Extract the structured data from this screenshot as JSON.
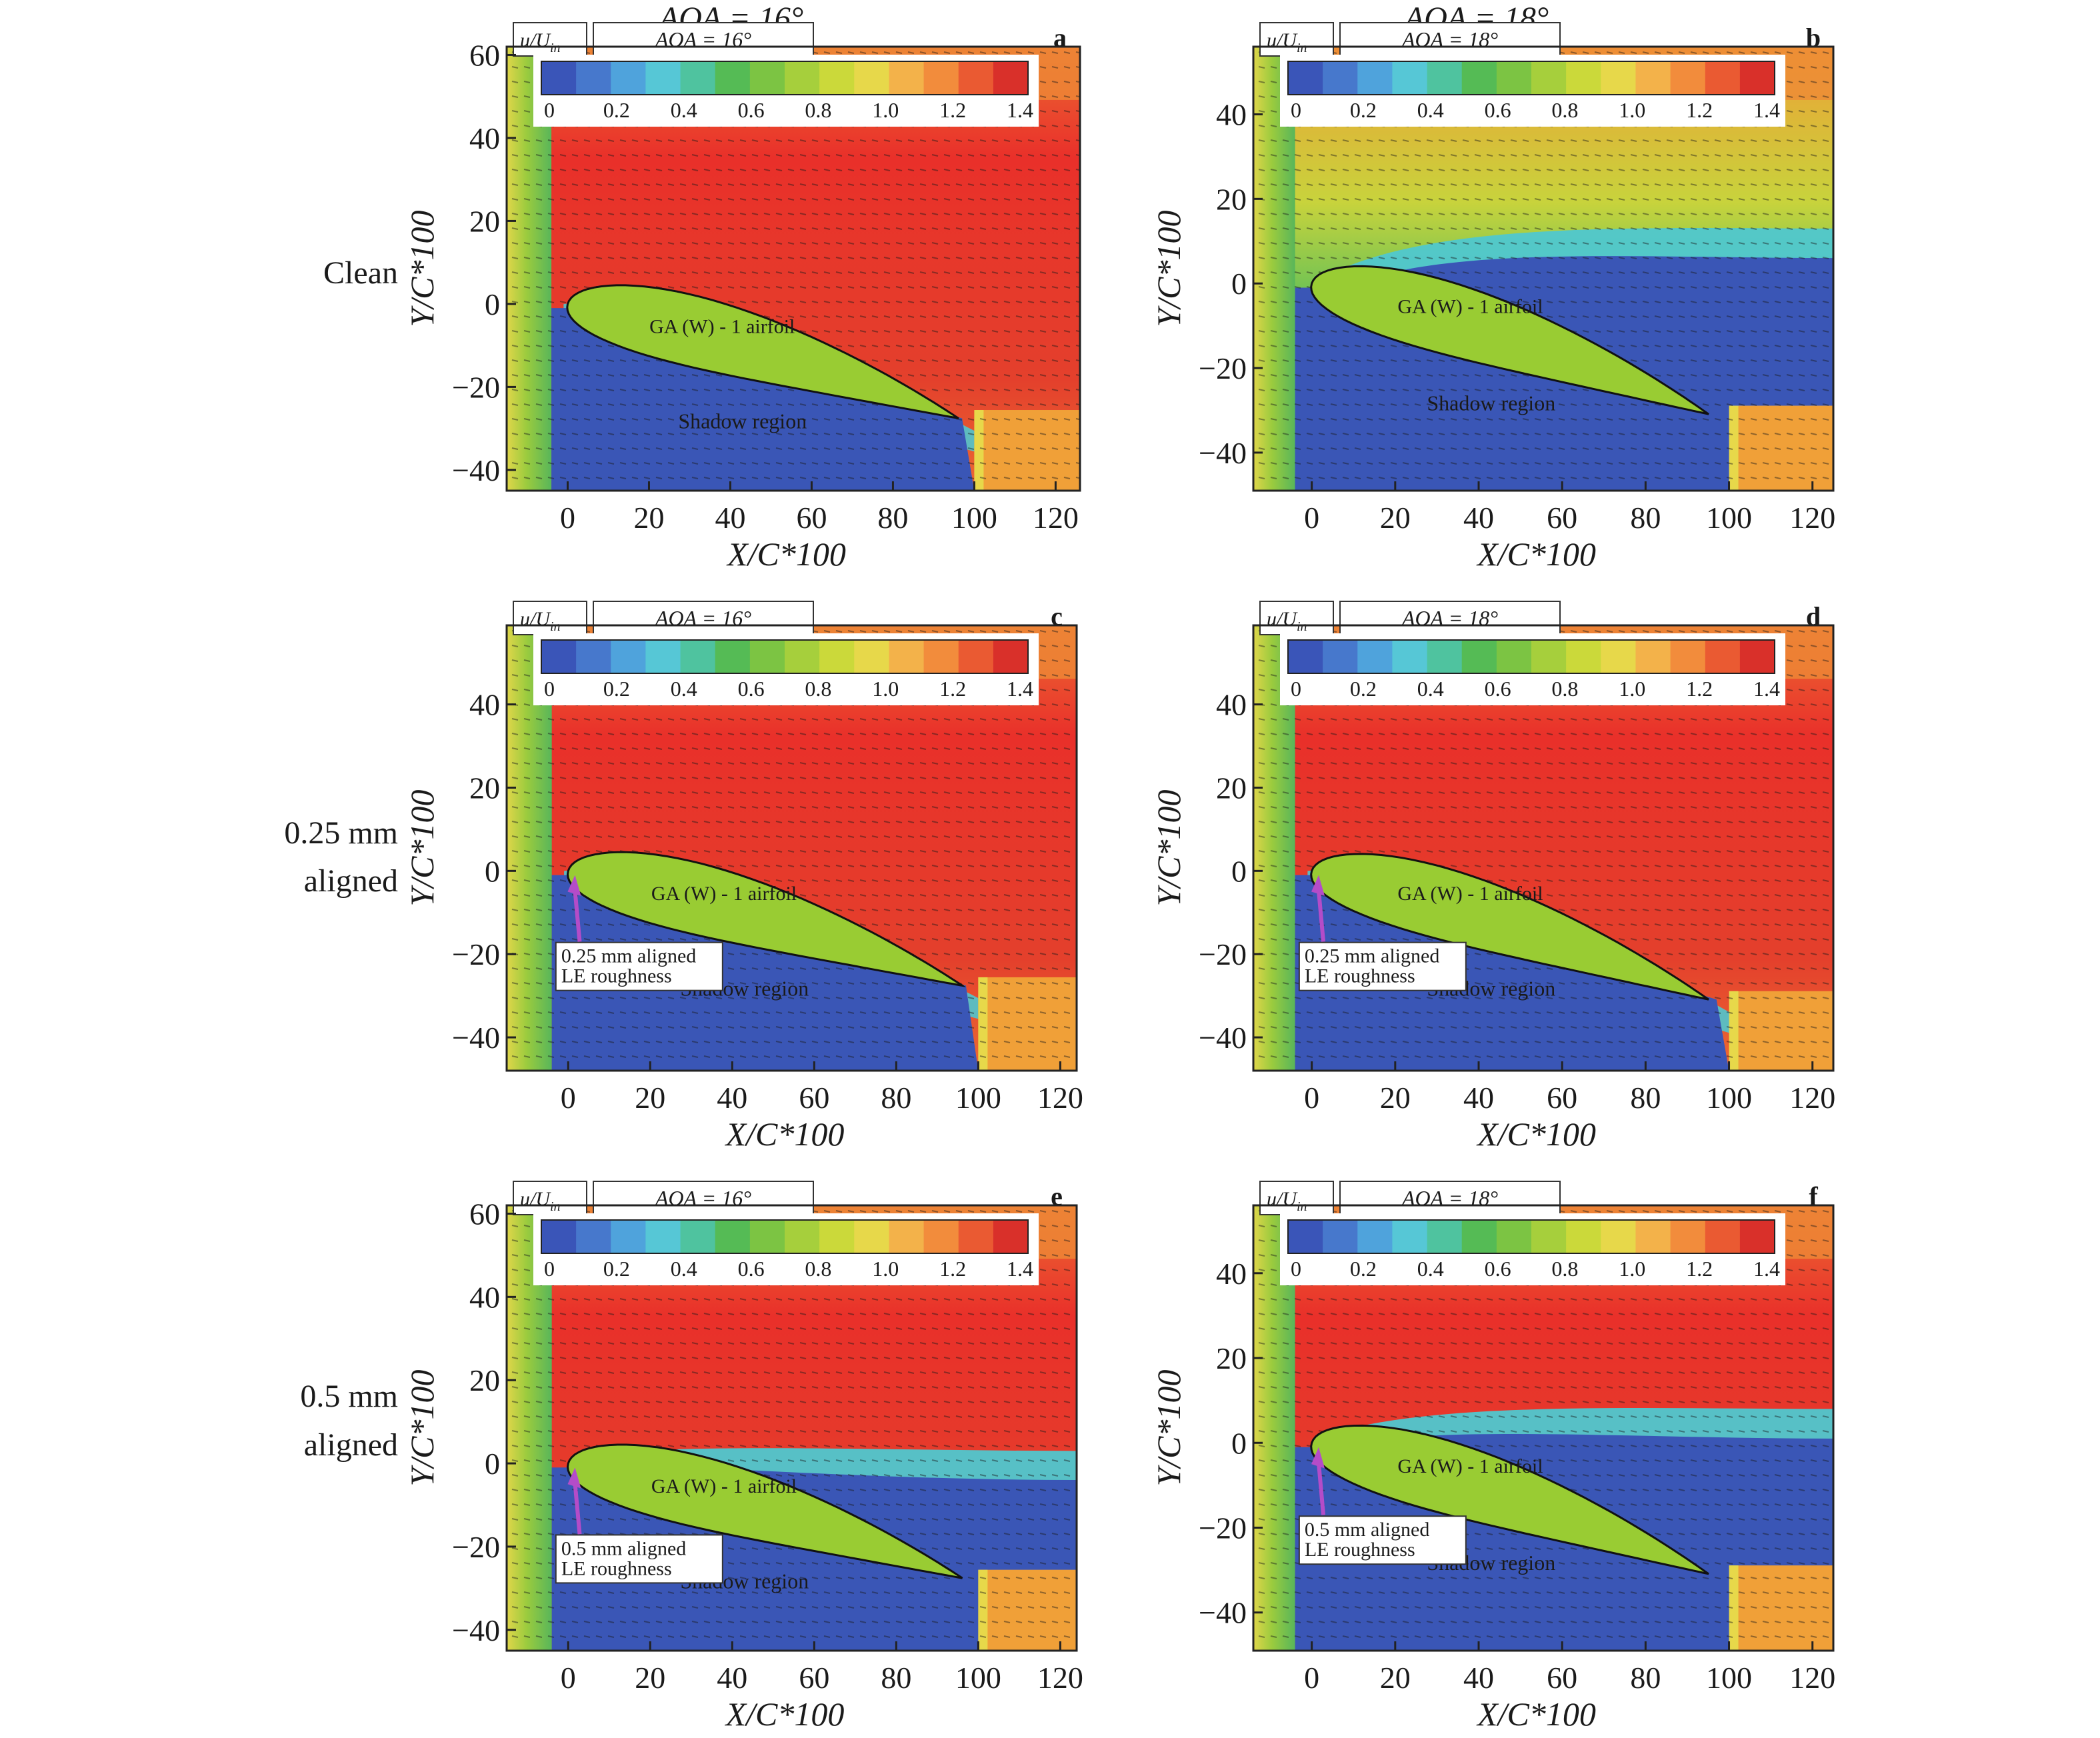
{
  "figure": {
    "column_titles": [
      "AOA = 16°",
      "AOA = 18°"
    ],
    "row_labels": [
      [
        "Clean"
      ],
      [
        "0.25 mm",
        "aligned"
      ],
      [
        "0.5 mm",
        "aligned"
      ]
    ],
    "colorbar": {
      "label": "u/U",
      "label_sub": "in",
      "ticks": [
        "0",
        "0.2",
        "0.4",
        "0.6",
        "0.8",
        "1.0",
        "1.2",
        "1.4"
      ],
      "colors": [
        "#3a55b8",
        "#4778cc",
        "#4fa3dc",
        "#56c7d6",
        "#4fc39f",
        "#55bb55",
        "#7cc443",
        "#a6cf3c",
        "#cbd93a",
        "#e7d84a",
        "#f3b24a",
        "#f28c3c",
        "#ea5a32",
        "#d9302a"
      ]
    },
    "field_colors": {
      "shadow": "#3a56b6",
      "freestream_high": "#e9302a",
      "freestream_mid": "#ec6b33",
      "inflow_green": "#58b65a",
      "airfoil_fill": "#99cc33",
      "wake_orange": "#f0a038",
      "shear_cyan": "#4fc7cf"
    }
  },
  "chart_data": [
    {
      "type": "heatmap",
      "panel": "a",
      "aoa_label": "AOA = 16°",
      "condition": "Clean",
      "xlabel": "X/C*100",
      "ylabel": "Y/C*100",
      "xticks": [
        0,
        20,
        40,
        60,
        80,
        100,
        120
      ],
      "yticks": [
        -40,
        -20,
        0,
        20,
        40,
        60
      ],
      "xlim": [
        -15,
        126
      ],
      "ylim": [
        -45,
        62
      ],
      "airfoil_label": "GA (W) - 1 airfoil",
      "shadow_label": "Shadow region",
      "roughness_label": null,
      "separated": false
    },
    {
      "type": "heatmap",
      "panel": "b",
      "aoa_label": "AOA = 18°",
      "condition": "Clean",
      "xlabel": "X/C*100",
      "ylabel": "Y/C*100",
      "xticks": [
        0,
        20,
        40,
        60,
        80,
        100,
        120
      ],
      "yticks": [
        -40,
        -20,
        0,
        20,
        40
      ],
      "xlim": [
        -14,
        125
      ],
      "ylim": [
        -49,
        56
      ],
      "airfoil_label": "GA (W) - 1 airfoil",
      "shadow_label": "Shadow region",
      "roughness_label": null,
      "separated": true
    },
    {
      "type": "heatmap",
      "panel": "c",
      "aoa_label": "AOA = 16°",
      "condition": "0.25 mm aligned",
      "xlabel": "X/C*100",
      "ylabel": "Y/C*100",
      "xticks": [
        0,
        20,
        40,
        60,
        80,
        100,
        120
      ],
      "yticks": [
        -40,
        -20,
        0,
        20,
        40
      ],
      "xlim": [
        -15,
        124
      ],
      "ylim": [
        -48,
        59
      ],
      "airfoil_label": "GA (W) - 1 airfoil",
      "shadow_label": "Shadow region",
      "roughness_label": [
        "0.25 mm aligned",
        "LE roughness"
      ],
      "separated": false
    },
    {
      "type": "heatmap",
      "panel": "d",
      "aoa_label": "AOA = 18°",
      "condition": "0.25 mm aligned",
      "xlabel": "X/C*100",
      "ylabel": "Y/C*100",
      "xticks": [
        0,
        20,
        40,
        60,
        80,
        100,
        120
      ],
      "yticks": [
        -40,
        -20,
        0,
        20,
        40
      ],
      "xlim": [
        -14,
        125
      ],
      "ylim": [
        -48,
        59
      ],
      "airfoil_label": "GA (W) - 1 airfoil",
      "shadow_label": "Shadow region",
      "roughness_label": [
        "0.25 mm aligned",
        "LE roughness"
      ],
      "separated": false
    },
    {
      "type": "heatmap",
      "panel": "e",
      "aoa_label": "AOA = 16°",
      "condition": "0.5 mm aligned",
      "xlabel": "X/C*100",
      "ylabel": "Y/C*100",
      "xticks": [
        0,
        20,
        40,
        60,
        80,
        100,
        120
      ],
      "yticks": [
        -40,
        -20,
        0,
        20,
        40,
        60
      ],
      "xlim": [
        -15,
        124
      ],
      "ylim": [
        -45,
        62
      ],
      "airfoil_label": "GA (W) - 1 airfoil",
      "shadow_label": "Shadow region",
      "roughness_label": [
        "0.5 mm aligned",
        "LE roughness"
      ],
      "separated": true
    },
    {
      "type": "heatmap",
      "panel": "f",
      "aoa_label": "AOA = 18°",
      "condition": "0.5 mm aligned",
      "xlabel": "X/C*100",
      "ylabel": "Y/C*100",
      "xticks": [
        0,
        20,
        40,
        60,
        80,
        100,
        120
      ],
      "yticks": [
        -40,
        -20,
        0,
        20,
        40
      ],
      "xlim": [
        -14,
        125
      ],
      "ylim": [
        -49,
        56
      ],
      "airfoil_label": "GA (W) - 1 airfoil",
      "shadow_label": "Shadow region",
      "roughness_label": [
        "0.5 mm aligned",
        "LE roughness"
      ],
      "separated": true
    }
  ]
}
